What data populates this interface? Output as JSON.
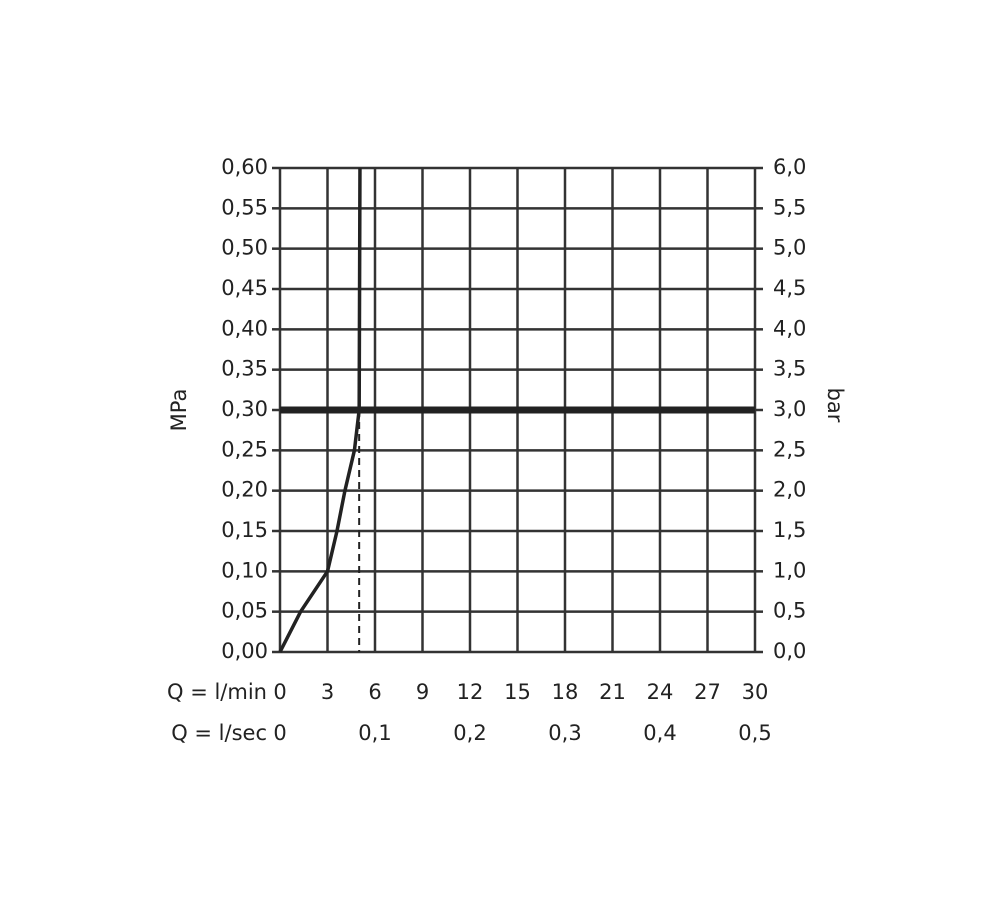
{
  "chart_data": {
    "type": "line",
    "y_label": "MPa",
    "y2_label": "bar",
    "x_label": "Q = l/min",
    "x2_label": "Q = l/sec",
    "series": [
      {
        "name": null,
        "color": "#222222",
        "x": [
          0,
          1.3,
          3,
          3.6,
          4.1,
          4.7,
          5,
          5.05
        ],
        "values": [
          0,
          0.05,
          0.1,
          0.15,
          0.2,
          0.25,
          0.3,
          0.6
        ]
      }
    ],
    "xlim": [
      0,
      30
    ],
    "xticks": [
      0,
      3,
      6,
      9,
      12,
      15,
      18,
      21,
      24,
      27,
      30
    ],
    "x2lim": [
      0,
      0.5
    ],
    "x2ticks": [
      0,
      {
        "value": 0.1,
        "label": "0,1"
      },
      {
        "value": 0.2,
        "label": "0,2"
      },
      {
        "value": 0.3,
        "label": "0,3"
      },
      {
        "value": 0.4,
        "label": "0,4"
      },
      {
        "value": 0.5,
        "label": "0,5"
      }
    ],
    "ylim": [
      0,
      0.6
    ],
    "yticks": [
      {
        "value": 0,
        "label": "0,00"
      },
      {
        "value": 0.05,
        "label": "0,05"
      },
      {
        "value": 0.1,
        "label": "0,10"
      },
      {
        "value": 0.15,
        "label": "0,15"
      },
      {
        "value": 0.2,
        "label": "0,20"
      },
      {
        "value": 0.25,
        "label": "0,25"
      },
      {
        "value": 0.3,
        "label": "0,30"
      },
      {
        "value": 0.35,
        "label": "0,35"
      },
      {
        "value": 0.4,
        "label": "0,40"
      },
      {
        "value": 0.45,
        "label": "0,45"
      },
      {
        "value": 0.5,
        "label": "0,50"
      },
      {
        "value": 0.55,
        "label": "0,55"
      },
      {
        "value": 0.6,
        "label": "0,60"
      }
    ],
    "y2lim": [
      0,
      6
    ],
    "y2ticks": [
      {
        "value": 0,
        "label": "0,0"
      },
      {
        "value": 0.5,
        "label": "0,5"
      },
      {
        "value": 1,
        "label": "1,0"
      },
      {
        "value": 1.5,
        "label": "1,5"
      },
      {
        "value": 2,
        "label": "2,0"
      },
      {
        "value": 2.5,
        "label": "2,5"
      },
      {
        "value": 3,
        "label": "3,0"
      },
      {
        "value": 3.5,
        "label": "3,5"
      },
      {
        "value": 4,
        "label": "4,0"
      },
      {
        "value": 4.5,
        "label": "4,5"
      },
      {
        "value": 5,
        "label": "5,0"
      },
      {
        "value": 5.5,
        "label": "5,5"
      },
      {
        "value": 6,
        "label": "6,0"
      }
    ],
    "threshold_y": 0.3,
    "dashed_x": 5,
    "grid": true
  }
}
